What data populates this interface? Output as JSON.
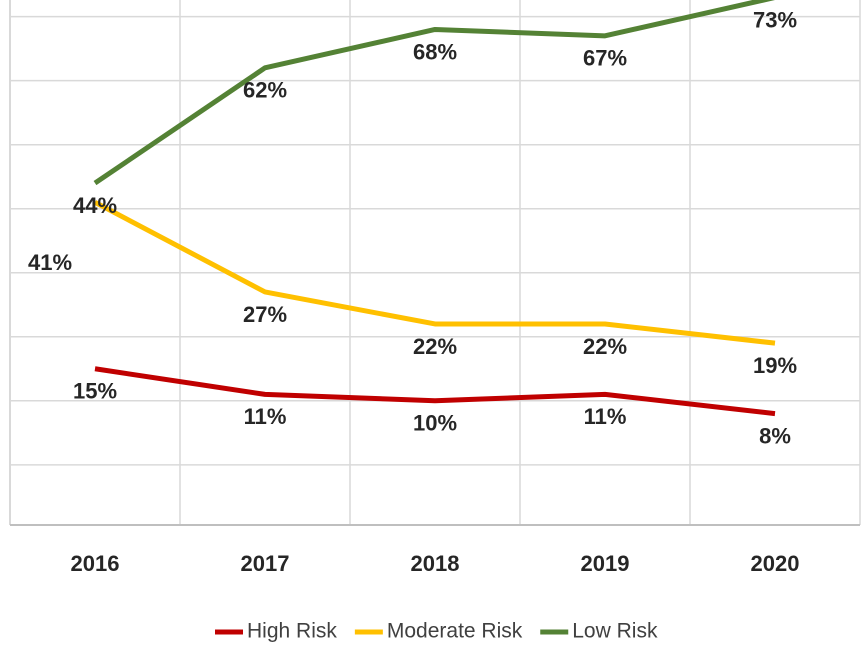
{
  "chart_data": {
    "type": "line",
    "categories": [
      "2016",
      "2017",
      "2018",
      "2019",
      "2020"
    ],
    "series": [
      {
        "name": "High Risk",
        "color": "#c00000",
        "values": [
          15,
          11,
          10,
          11,
          8
        ],
        "value_labels": [
          "15%",
          "11%",
          "10%",
          "11%",
          "8%"
        ]
      },
      {
        "name": "Moderate Risk",
        "color": "#ffc000",
        "values": [
          41,
          27,
          22,
          22,
          19
        ],
        "value_labels": [
          "41%",
          "27%",
          "22%",
          "22%",
          "19%"
        ]
      },
      {
        "name": "Low Risk",
        "color": "#548235",
        "values": [
          44,
          62,
          68,
          67,
          73
        ],
        "value_labels": [
          "44%",
          "62%",
          "68%",
          "67%",
          "73%"
        ]
      }
    ],
    "ylim": [
      -9.4,
      72.6
    ],
    "yticks": [
      -10,
      0,
      10,
      20,
      30,
      40,
      50,
      60,
      70
    ],
    "grid": true,
    "legend": "bottom"
  }
}
